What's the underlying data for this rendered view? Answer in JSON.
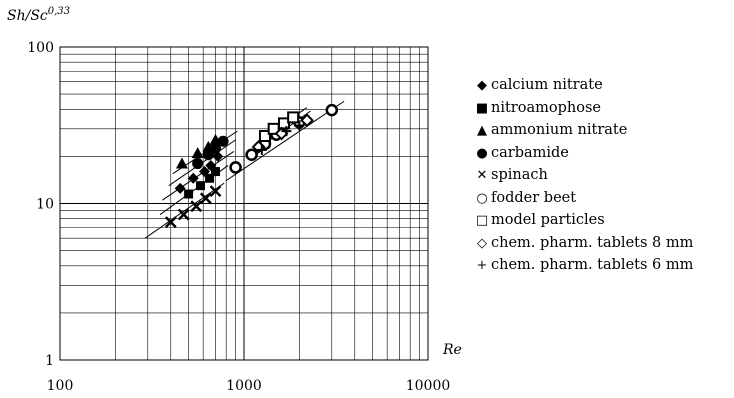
{
  "chart_data": {
    "type": "scatter",
    "title": "",
    "ylabel": "Sh/Sc",
    "ylabel_exponent": "0,33",
    "xlabel": "Re",
    "x_scale": "log",
    "y_scale": "log",
    "xlim": [
      100,
      10000
    ],
    "ylim": [
      1,
      100
    ],
    "x_ticks": [
      "100",
      "1000",
      "10000"
    ],
    "y_ticks": [
      "1",
      "10",
      "100"
    ],
    "grid": true,
    "legend_position": "right",
    "series": [
      {
        "name": "calcium nitrate",
        "marker": "diamond-filled",
        "points": [
          [
            450,
            12.5
          ],
          [
            530,
            14.5
          ],
          [
            610,
            16
          ],
          [
            660,
            17.5
          ],
          [
            720,
            20
          ]
        ]
      },
      {
        "name": "nitroamophose",
        "marker": "square-filled",
        "points": [
          [
            500,
            11.5
          ],
          [
            580,
            13
          ],
          [
            650,
            14.5
          ],
          [
            700,
            16
          ]
        ]
      },
      {
        "name": "ammonium nitrate",
        "marker": "triangle-filled",
        "points": [
          [
            460,
            18
          ],
          [
            560,
            21
          ],
          [
            640,
            23
          ],
          [
            700,
            25.5
          ]
        ]
      },
      {
        "name": "carbamide",
        "marker": "circle-filled",
        "points": [
          [
            560,
            18
          ],
          [
            640,
            20.5
          ],
          [
            700,
            22.5
          ],
          [
            770,
            25
          ]
        ]
      },
      {
        "name": "spinach",
        "marker": "x",
        "points": [
          [
            400,
            7.6
          ],
          [
            470,
            8.5
          ],
          [
            550,
            9.6
          ],
          [
            620,
            10.8
          ],
          [
            700,
            12
          ]
        ]
      },
      {
        "name": "fodder beet",
        "marker": "circle-open",
        "points": [
          [
            900,
            17
          ],
          [
            1100,
            20.5
          ],
          [
            1300,
            24
          ],
          [
            1500,
            27.5
          ],
          [
            2000,
            33
          ],
          [
            3000,
            39.5
          ]
        ]
      },
      {
        "name": "model particles",
        "marker": "square-open",
        "points": [
          [
            1300,
            27
          ],
          [
            1450,
            30
          ],
          [
            1650,
            32.5
          ],
          [
            1850,
            35.5
          ]
        ]
      },
      {
        "name": "chem. pharm. tablets 8 mm",
        "marker": "diamond-open",
        "points": [
          [
            1200,
            23
          ],
          [
            1600,
            28
          ],
          [
            2200,
            34
          ]
        ]
      },
      {
        "name": "chem. pharm. tablets 6 mm",
        "marker": "plus",
        "points": [
          [
            1250,
            22
          ],
          [
            1700,
            29
          ],
          [
            2000,
            31.5
          ]
        ]
      }
    ],
    "trend_lines": [
      [
        [
          290,
          6
        ],
        [
          780,
          13.5
        ]
      ],
      [
        [
          350,
          8.5
        ],
        [
          820,
          17.5
        ]
      ],
      [
        [
          360,
          10.5
        ],
        [
          880,
          21.5
        ]
      ],
      [
        [
          390,
          13
        ],
        [
          900,
          25.5
        ]
      ],
      [
        [
          410,
          15.5
        ],
        [
          920,
          29
        ]
      ],
      [
        [
          800,
          14
        ],
        [
          3500,
          45
        ]
      ],
      [
        [
          1100,
          21
        ],
        [
          2300,
          39
        ]
      ],
      [
        [
          1250,
          26
        ],
        [
          2200,
          41
        ]
      ]
    ]
  },
  "legend": {
    "symbols": [
      "◆",
      "■",
      "▲",
      "●",
      "✕",
      "○",
      "□",
      "◇",
      "+"
    ]
  }
}
